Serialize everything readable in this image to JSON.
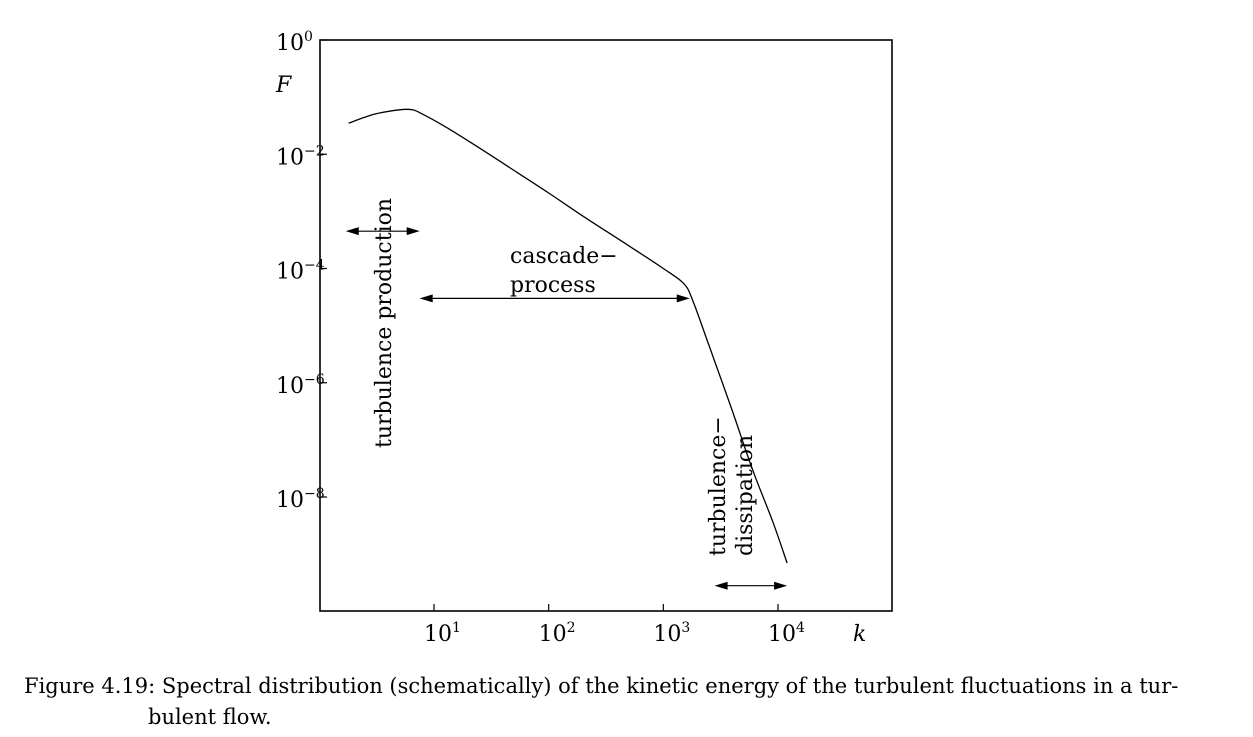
{
  "chart_data": {
    "type": "line",
    "x_scale": "log",
    "y_scale": "log",
    "xlabel": "k",
    "ylabel": "F",
    "xlim": [
      1,
      50000
    ],
    "ylim": [
      1e-10,
      1
    ],
    "x_ticks": [
      {
        "value": 10,
        "base": "10",
        "exp": "1"
      },
      {
        "value": 100,
        "base": "10",
        "exp": "2"
      },
      {
        "value": 1000,
        "base": "10",
        "exp": "3"
      },
      {
        "value": 10000,
        "base": "10",
        "exp": "4"
      }
    ],
    "y_ticks": [
      {
        "value": 1,
        "base": "10",
        "exp": "0"
      },
      {
        "value": 0.01,
        "base": "10",
        "exp": "−2"
      },
      {
        "value": 0.0001,
        "base": "10",
        "exp": "−4"
      },
      {
        "value": 1e-06,
        "base": "10",
        "exp": "−6"
      },
      {
        "value": 1e-08,
        "base": "10",
        "exp": "−8"
      }
    ],
    "series": [
      {
        "x": [
          1.8,
          3,
          5,
          6.5,
          8,
          12,
          20,
          50,
          100,
          200,
          500,
          1000,
          1500,
          1800,
          2500,
          4000,
          6000,
          9000,
          12000
        ],
        "y": [
          0.035,
          0.05,
          0.06,
          0.06,
          0.05,
          0.032,
          0.017,
          0.0052,
          0.0021,
          0.00082,
          0.00025,
          0.0001,
          5.5e-05,
          2.8e-05,
          4.5e-06,
          3.2e-07,
          3e-08,
          3.7e-09,
          7e-10
        ]
      }
    ],
    "annotations": [
      {
        "id": "production",
        "lines": [
          "turbulence production"
        ],
        "range_x": [
          1.7,
          7.5
        ],
        "arrow_y": 0.00045,
        "orientation": "vertical"
      },
      {
        "id": "cascade",
        "lines": [
          "cascade−",
          "process"
        ],
        "range_x": [
          7.5,
          1700
        ],
        "arrow_y": 3e-05,
        "orientation": "horizontal"
      },
      {
        "id": "dissipation",
        "lines": [
          "turbulence−",
          "dissipation"
        ],
        "range_x": [
          2800,
          12000
        ],
        "arrow_y": 2.8e-10,
        "orientation": "vertical"
      }
    ]
  },
  "caption": {
    "line1": "Figure 4.19: Spectral distribution (schematically) of the kinetic energy of the turbulent fluctuations in a tur-",
    "line2": "bulent flow."
  }
}
